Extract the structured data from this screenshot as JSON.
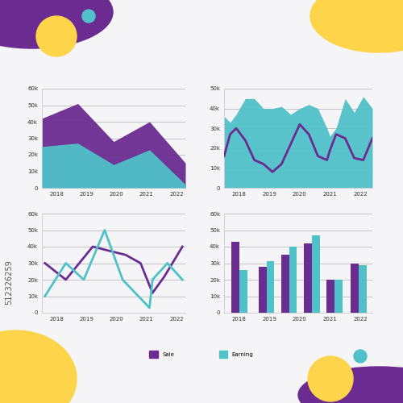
{
  "watermark": "512326259",
  "chart_data": [
    {
      "type": "area",
      "stacked": false,
      "grid": true,
      "x": [
        2017.5,
        2018.7,
        2019.9,
        2021.1,
        2022.3
      ],
      "xlim": [
        2017.5,
        2022.3
      ],
      "xticks": [
        2018,
        2019,
        2020,
        2021,
        2022
      ],
      "ylim": [
        0,
        60000
      ],
      "yticks": [
        0,
        {
          "value": 10000,
          "label": "10k"
        },
        {
          "value": 20000,
          "label": "20k"
        },
        {
          "value": 30000,
          "label": "30k"
        },
        {
          "value": 40000,
          "label": "40k"
        },
        {
          "value": 50000,
          "label": "50k"
        },
        {
          "value": 60000,
          "label": "60k"
        }
      ],
      "series": [
        {
          "name": "Sale",
          "color": "#6a2c91",
          "values": [
            42000,
            51000,
            28000,
            40000,
            15000
          ]
        },
        {
          "name": "Earning",
          "color": "#4fc1c8",
          "values": [
            25000,
            27000,
            14000,
            23000,
            2000
          ]
        }
      ]
    },
    {
      "type": "area",
      "grid": true,
      "x": [
        2017.5,
        2017.7,
        2017.9,
        2018.2,
        2018.5,
        2018.8,
        2019.1,
        2019.4,
        2019.7,
        2020.0,
        2020.3,
        2020.6,
        2020.9,
        2021.0,
        2021.2,
        2021.5,
        2021.8,
        2022.1,
        2022.4
      ],
      "xlim": [
        2017.5,
        2022.4
      ],
      "xticks": [
        2018,
        2019,
        2020,
        2021,
        2022
      ],
      "ylim": [
        0,
        50000
      ],
      "yticks": [
        0,
        {
          "value": 10000,
          "label": "10k"
        },
        {
          "value": 20000,
          "label": "20k"
        },
        {
          "value": 30000,
          "label": "30k"
        },
        {
          "value": 40000,
          "label": "40k"
        },
        {
          "value": 50000,
          "label": "50k"
        }
      ],
      "series": [
        {
          "name": "Earning",
          "type": "area",
          "color": "#4fc1c8",
          "values": [
            36000,
            33000,
            37000,
            45000,
            45000,
            40000,
            40000,
            41000,
            37000,
            40000,
            42000,
            40000,
            30000,
            26000,
            30000,
            45000,
            38000,
            46000,
            40000
          ]
        },
        {
          "name": "Sale",
          "type": "line",
          "color": "#6a2c91",
          "values": [
            16000,
            27000,
            30000,
            24000,
            14000,
            12000,
            8000,
            12000,
            22000,
            32000,
            27000,
            16000,
            14000,
            19000,
            27000,
            25000,
            15000,
            14000,
            25000
          ]
        }
      ]
    },
    {
      "type": "line",
      "grid": true,
      "xlim": [
        2017.5,
        2022.3
      ],
      "xticks": [
        2018,
        2019,
        2020,
        2021,
        2022
      ],
      "ylim": [
        0,
        60000
      ],
      "yticks": [
        0,
        {
          "value": 10000,
          "label": "10k"
        },
        {
          "value": 20000,
          "label": "20k"
        },
        {
          "value": 30000,
          "label": "30k"
        },
        {
          "value": 40000,
          "label": "40k"
        },
        {
          "value": 50000,
          "label": "50k"
        },
        {
          "value": 60000,
          "label": "60k"
        }
      ],
      "series": [
        {
          "name": "Sale",
          "color": "#6a2c91",
          "x": [
            2017.6,
            2018.3,
            2019.2,
            2020.3,
            2020.8,
            2021.2,
            2021.6,
            2022.2
          ],
          "values": [
            30000,
            20000,
            40000,
            35000,
            30000,
            12000,
            22000,
            40000
          ]
        },
        {
          "name": "Earning",
          "color": "#4fc1c8",
          "x": [
            2017.6,
            2018.3,
            2018.9,
            2019.6,
            2020.2,
            2021.1,
            2021.2,
            2021.7,
            2022.2
          ],
          "values": [
            10000,
            30000,
            20000,
            50000,
            20000,
            3000,
            20000,
            30000,
            20000
          ]
        }
      ]
    },
    {
      "type": "bar",
      "grid": true,
      "legend": "lower center",
      "x": [
        2018.0,
        2018.9,
        2019.65,
        2020.4,
        2021.15,
        2021.95
      ],
      "xlim": [
        2017.5,
        2022.4
      ],
      "xticks": [
        2018,
        2019,
        2020,
        2021,
        2022
      ],
      "ylim": [
        0,
        60000
      ],
      "yticks": [
        0,
        {
          "value": 10000,
          "label": "10k"
        },
        {
          "value": 20000,
          "label": "20k"
        },
        {
          "value": 30000,
          "label": "30k"
        },
        {
          "value": 40000,
          "label": "40k"
        },
        {
          "value": 50000,
          "label": "50k"
        },
        {
          "value": 60000,
          "label": "60k"
        }
      ],
      "series": [
        {
          "name": "Sale",
          "color": "#6a2c91",
          "values": [
            43000,
            28000,
            35000,
            42000,
            20000,
            30000
          ]
        },
        {
          "name": "Earning",
          "color": "#4fc1c8",
          "values": [
            26000,
            31000,
            40000,
            47000,
            20000,
            29000
          ]
        }
      ]
    }
  ]
}
